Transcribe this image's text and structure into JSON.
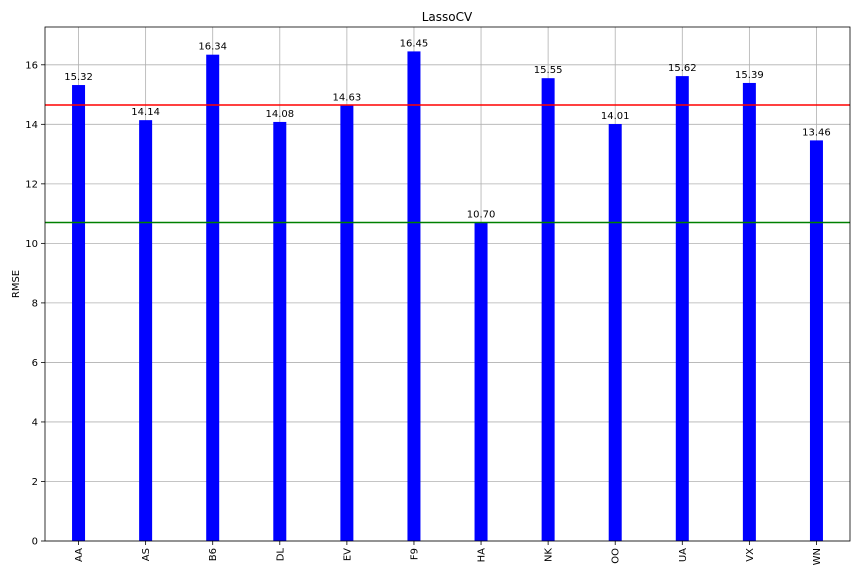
{
  "chart_data": {
    "type": "bar",
    "title": "LassoCV",
    "xlabel": "",
    "ylabel": "RMSE",
    "categories": [
      "AA",
      "AS",
      "B6",
      "DL",
      "EV",
      "F9",
      "HA",
      "NK",
      "OO",
      "UA",
      "VX",
      "WN"
    ],
    "values": [
      15.32,
      14.14,
      16.34,
      14.08,
      14.63,
      16.45,
      10.7,
      15.55,
      14.01,
      15.62,
      15.39,
      13.46
    ],
    "data_labels": [
      "15.32",
      "14.14",
      "16.34",
      "14.08",
      "14.63",
      "16.45",
      "10.70",
      "15.55",
      "14.01",
      "15.62",
      "15.39",
      "13.46"
    ],
    "ylim": [
      0,
      17.27
    ],
    "yticks": [
      0,
      2,
      4,
      6,
      8,
      10,
      12,
      14,
      16
    ],
    "grid": true,
    "bar_color": "#0000ff",
    "reference_lines": [
      {
        "y": 14.65,
        "color": "#ff0000"
      },
      {
        "y": 10.7,
        "color": "#008000"
      }
    ]
  }
}
